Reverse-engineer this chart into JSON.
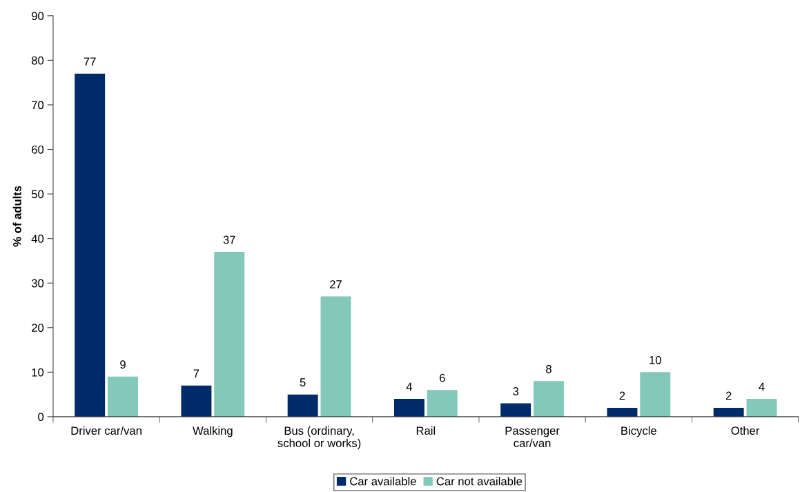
{
  "chart_data": {
    "type": "bar",
    "ylabel": "% of adults",
    "categories": [
      "Driver car/van",
      "Walking",
      "Bus (ordinary,\nschool or works)",
      "Rail",
      "Passenger\ncar/van",
      "Bicycle",
      "Other"
    ],
    "series": [
      {
        "name": "Car available",
        "color": "#002b6b",
        "values": [
          77,
          7,
          5,
          4,
          3,
          2,
          2
        ]
      },
      {
        "name": "Car not available",
        "color": "#82c9b9",
        "values": [
          9,
          37,
          27,
          6,
          8,
          10,
          4
        ]
      }
    ],
    "ylim": [
      0,
      90
    ],
    "yticks": [
      0,
      10,
      20,
      30,
      40,
      50,
      60,
      70,
      80,
      90
    ],
    "data_labels": true,
    "grid": false,
    "legend": "bottom"
  }
}
